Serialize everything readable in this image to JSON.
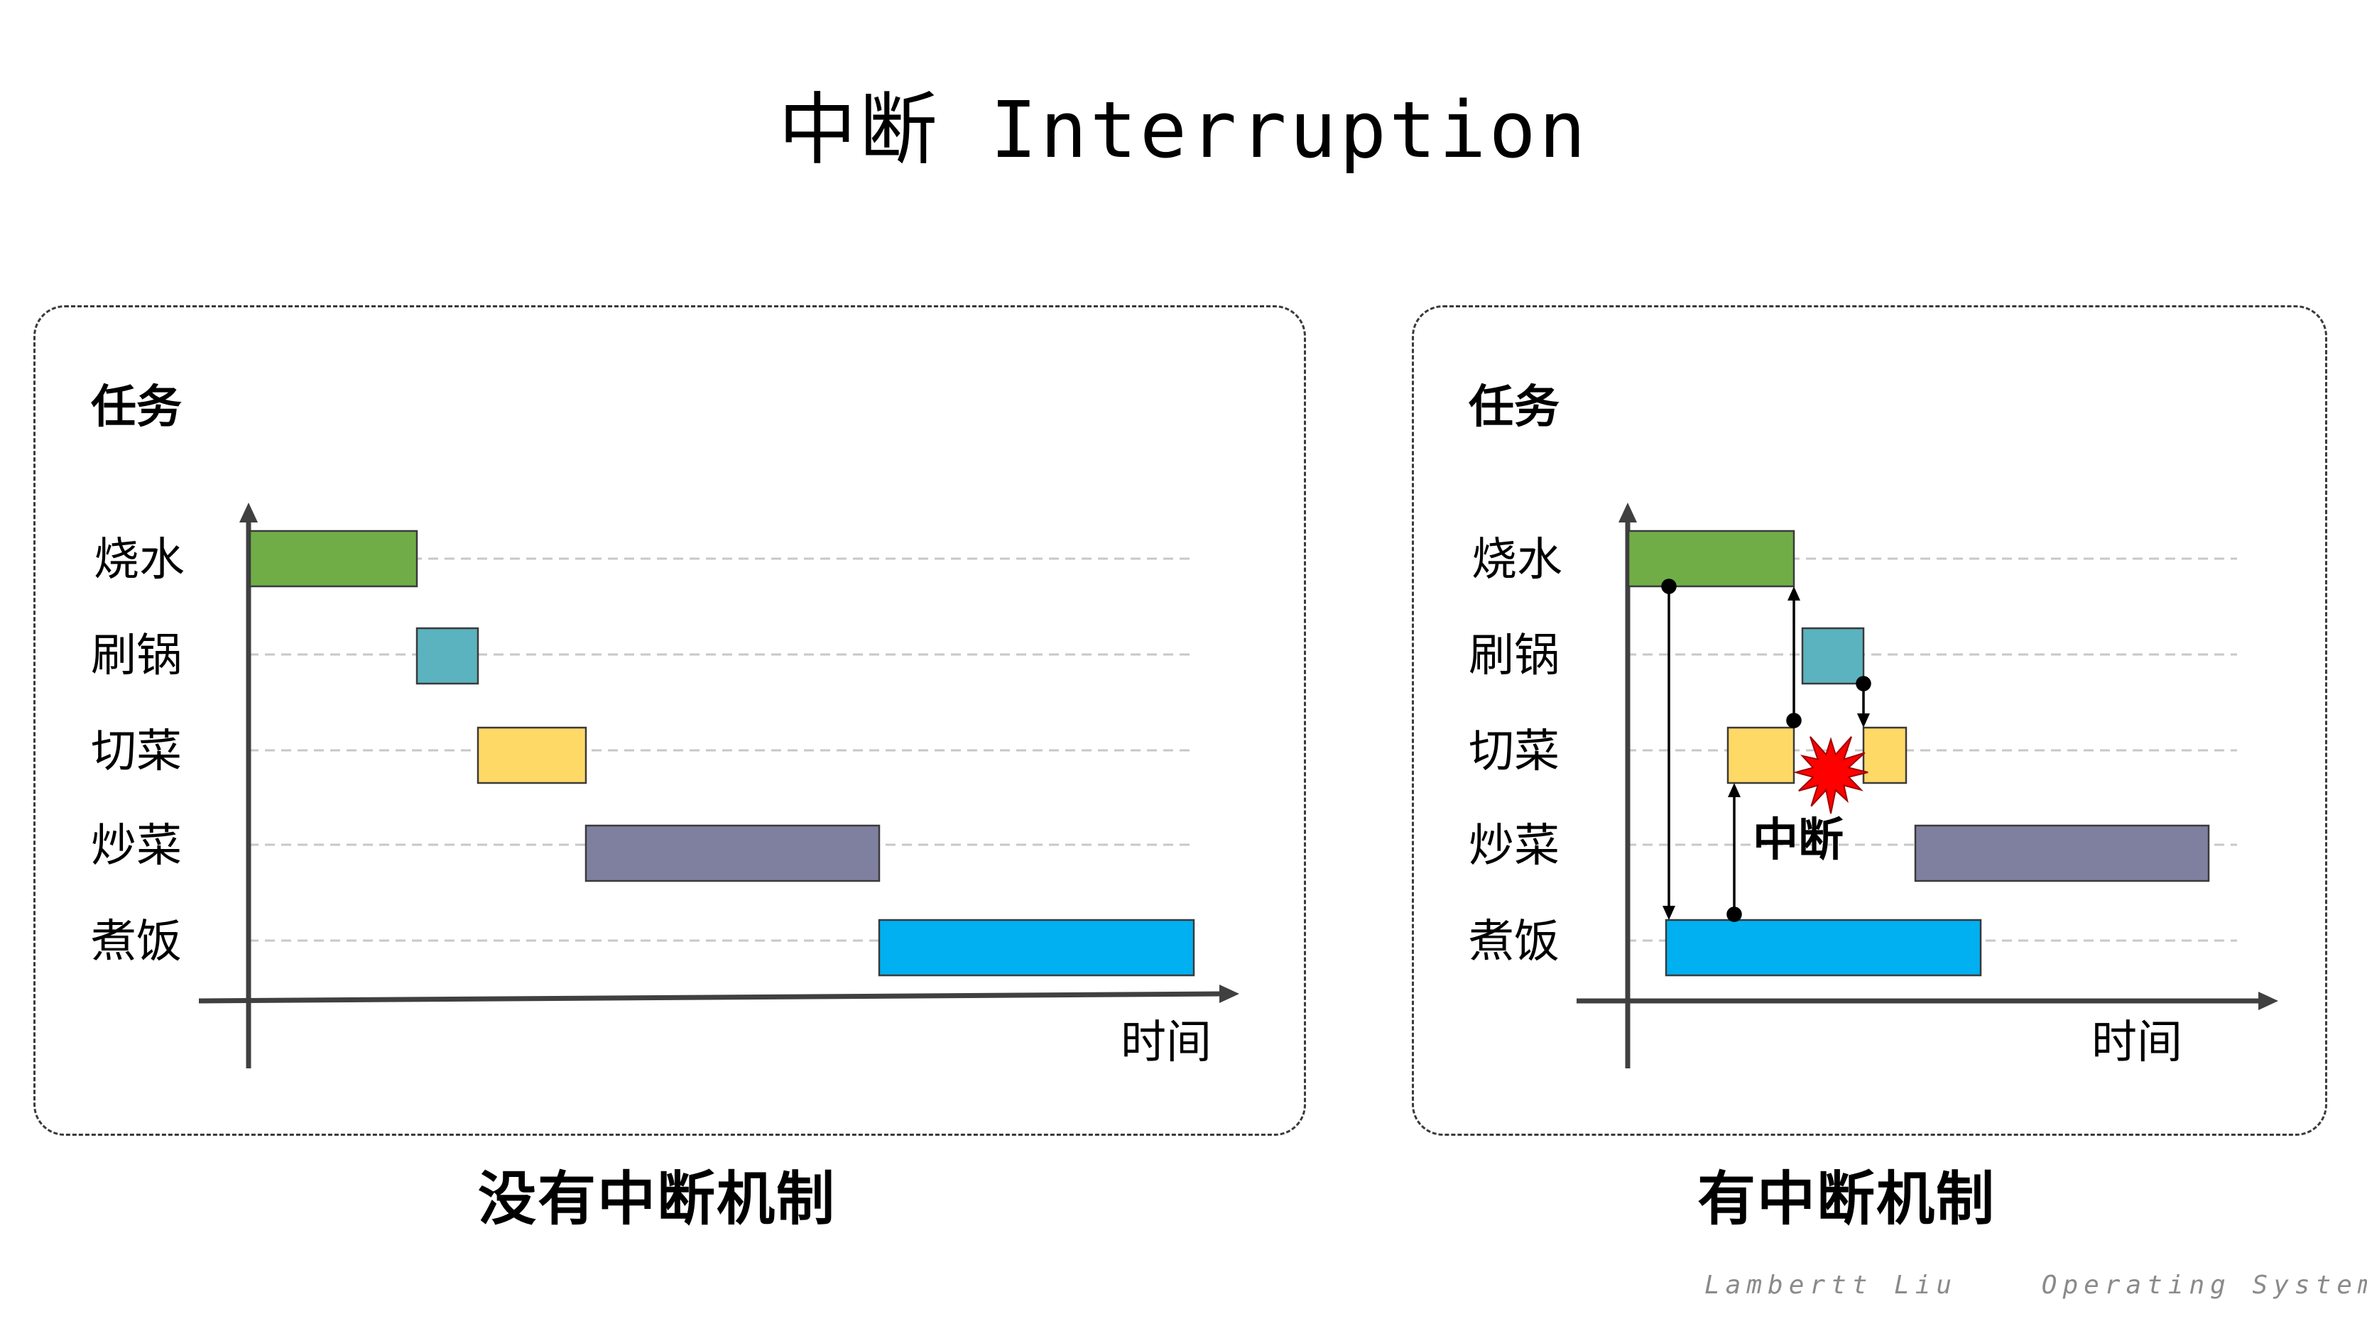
{
  "title": "中断 Interruption",
  "colors": {
    "烧水": "#70ad47",
    "刷锅": "#5bb3bf",
    "切菜": "#ffd966",
    "炒菜": "#7f7f9f",
    "煮饭": "#00b0f0",
    "burst": "#ff0000"
  },
  "left_panel": {
    "y_label": "任务",
    "x_label": "时间",
    "tasks": [
      "烧水",
      "刷锅",
      "切菜",
      "炒菜",
      "煮饭"
    ],
    "caption": "没有中断机制"
  },
  "right_panel": {
    "y_label": "任务",
    "x_label": "时间",
    "tasks": [
      "烧水",
      "刷锅",
      "切菜",
      "炒菜",
      "煮饭"
    ],
    "interrupt_label": "中断",
    "caption": "有中断机制"
  },
  "footer": "Lambertt Liu    Operating System"
}
